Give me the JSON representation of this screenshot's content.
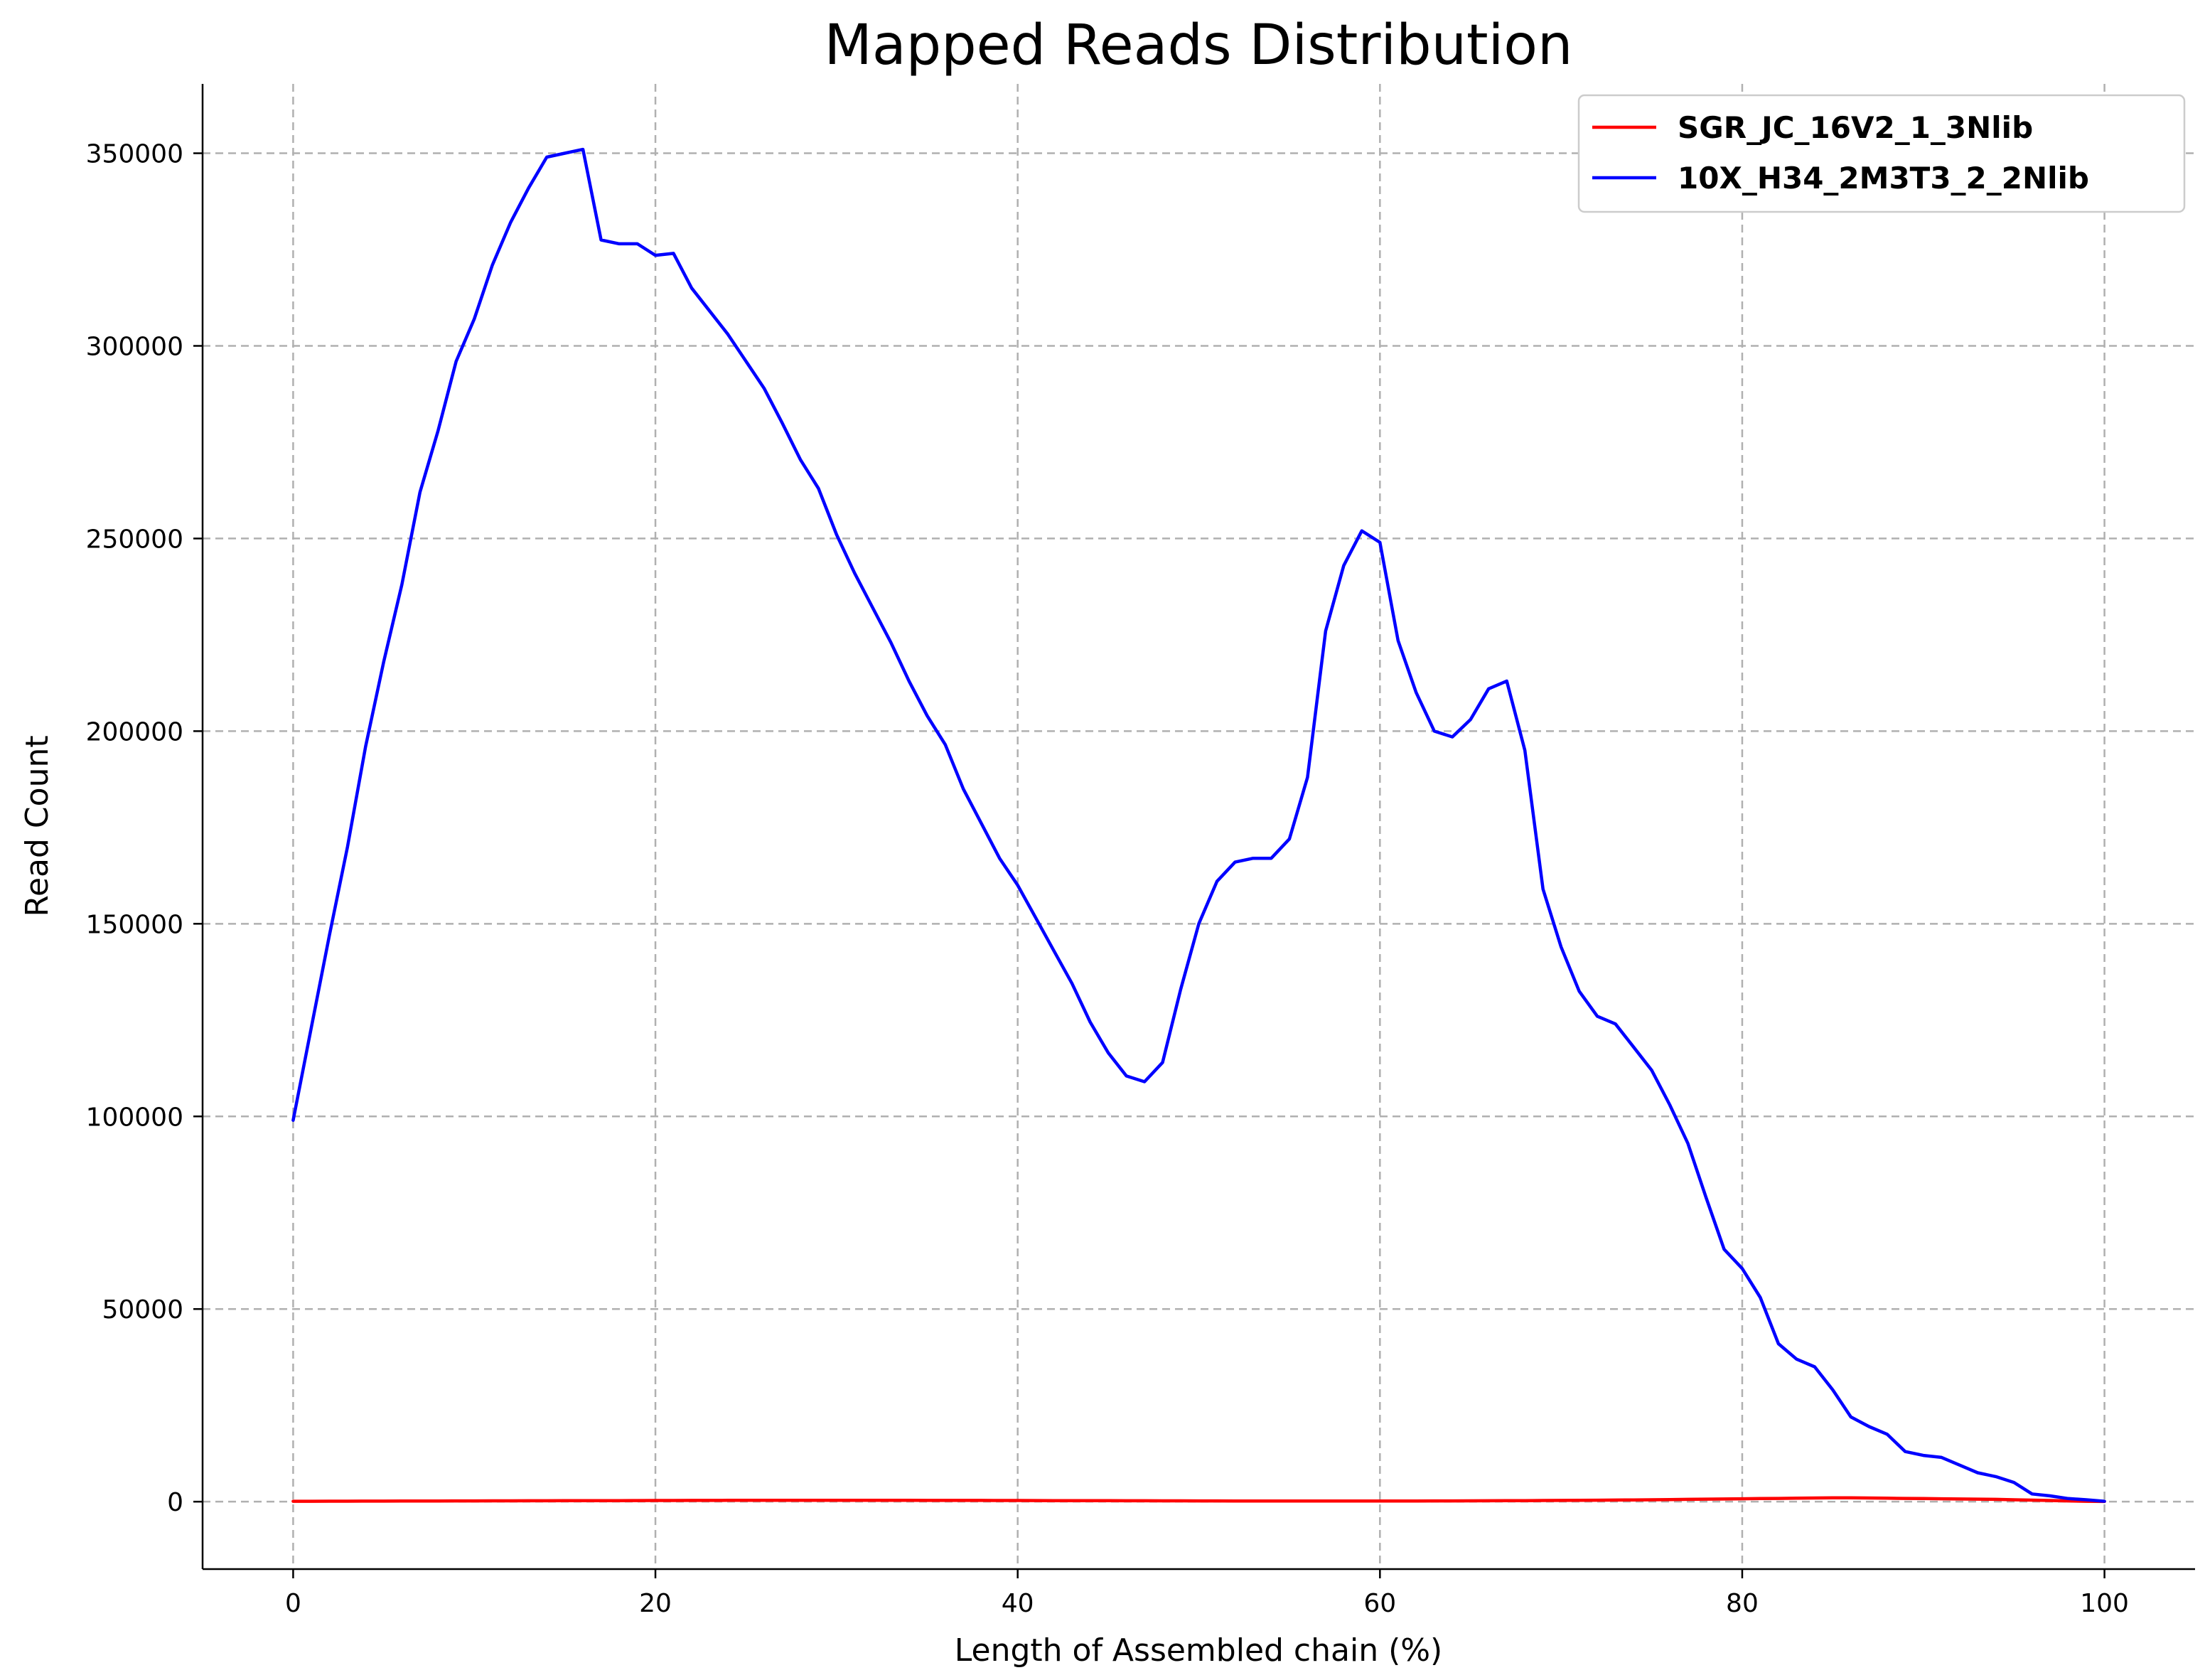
{
  "chart_data": {
    "type": "line",
    "title": "Mapped Reads Distribution",
    "xlabel": "Length of Assembled chain (%)",
    "ylabel": "Read Count",
    "xlim": [
      -5,
      105
    ],
    "ylim": [
      -17500,
      368000
    ],
    "xticks": [
      0,
      20,
      40,
      60,
      80,
      100
    ],
    "xtick_labels": [
      "0",
      "20",
      "40",
      "60",
      "80",
      "100"
    ],
    "yticks": [
      0,
      50000,
      100000,
      150000,
      200000,
      250000,
      300000,
      350000
    ],
    "ytick_labels": [
      "0",
      "50000",
      "100000",
      "150000",
      "200000",
      "250000",
      "300000",
      "350000"
    ],
    "grid": true,
    "legend_position": "top-right",
    "x": [
      0,
      1,
      2,
      3,
      4,
      5,
      6,
      7,
      8,
      9,
      10,
      11,
      12,
      13,
      14,
      15,
      16,
      17,
      18,
      19,
      20,
      21,
      22,
      23,
      24,
      25,
      26,
      27,
      28,
      29,
      30,
      31,
      32,
      33,
      34,
      35,
      36,
      37,
      38,
      39,
      40,
      41,
      42,
      43,
      44,
      45,
      46,
      47,
      48,
      49,
      50,
      51,
      52,
      53,
      54,
      55,
      56,
      57,
      58,
      59,
      60,
      61,
      62,
      63,
      64,
      65,
      66,
      67,
      68,
      69,
      70,
      71,
      72,
      73,
      74,
      75,
      76,
      77,
      78,
      79,
      80,
      81,
      82,
      83,
      84,
      85,
      86,
      87,
      88,
      89,
      90,
      91,
      92,
      93,
      94,
      95,
      96,
      97,
      98,
      99,
      100
    ],
    "series": [
      {
        "name": "SGR_JC_16V2_1_3Nlib",
        "color": "#ff0000",
        "values": [
          100,
          110,
          120,
          130,
          140,
          150,
          160,
          170,
          180,
          190,
          200,
          210,
          220,
          230,
          240,
          250,
          260,
          270,
          280,
          290,
          300,
          310,
          320,
          330,
          340,
          350,
          350,
          350,
          350,
          350,
          350,
          350,
          350,
          340,
          340,
          330,
          330,
          320,
          320,
          310,
          300,
          290,
          280,
          270,
          260,
          250,
          240,
          230,
          220,
          210,
          200,
          190,
          180,
          170,
          160,
          160,
          160,
          160,
          160,
          160,
          160,
          170,
          180,
          190,
          200,
          210,
          230,
          250,
          270,
          300,
          330,
          360,
          390,
          420,
          460,
          500,
          550,
          600,
          650,
          700,
          750,
          800,
          850,
          900,
          950,
          1000,
          1000,
          950,
          900,
          850,
          800,
          750,
          700,
          650,
          600,
          500,
          400,
          300,
          200,
          100,
          50
        ]
      },
      {
        "name": "10X_H34_2M3T3_2_2Nlib",
        "color": "#0000ff",
        "values": [
          99000,
          123000,
          147000,
          170000,
          196000,
          218000,
          238000,
          262000,
          278000,
          296000,
          307000,
          321000,
          332000,
          341000,
          349000,
          350000,
          351000,
          327500,
          326500,
          326500,
          323500,
          324000,
          315000,
          309000,
          303000,
          296000,
          289000,
          280000,
          270500,
          263000,
          251000,
          241000,
          232000,
          223000,
          213000,
          204000,
          196500,
          185000,
          176000,
          167000,
          160000,
          151500,
          143000,
          134500,
          124500,
          116500,
          110500,
          109000,
          114000,
          133000,
          150000,
          161000,
          166000,
          167000,
          167000,
          172000,
          188000,
          226000,
          243000,
          252000,
          249000,
          223500,
          210000,
          200000,
          198500,
          203000,
          211000,
          213000,
          195000,
          159000,
          144000,
          132500,
          126000,
          124000,
          118000,
          112000,
          103000,
          93000,
          79000,
          65500,
          60500,
          53000,
          41000,
          37000,
          35000,
          29000,
          22000,
          19500,
          17500,
          13000,
          12000,
          11500,
          9500,
          7500,
          6500,
          5000,
          2000,
          1500,
          800,
          500,
          100
        ]
      }
    ]
  }
}
